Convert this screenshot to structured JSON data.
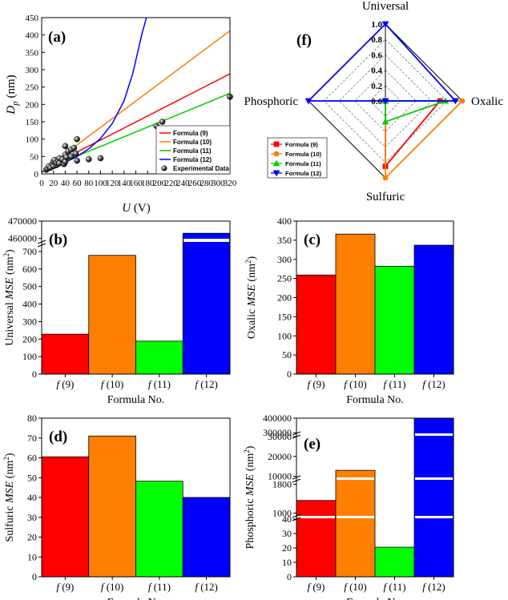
{
  "chart_data": {
    "a": {
      "type": "line",
      "label": "(a)",
      "xlabel_italic": "U",
      "xlabel_unit": " (V)",
      "ylabel_main": "D",
      "ylabel_sub": "p",
      "ylabel_unit": " (nm)",
      "xlim": [
        0,
        320
      ],
      "ylim": [
        0,
        450
      ],
      "x_ticks": [
        "0",
        "20",
        "40",
        "60",
        "80",
        "100",
        "120",
        "140",
        "160",
        "180",
        "200",
        "220",
        "240",
        "260",
        "280",
        "300",
        "320"
      ],
      "y_ticks": [
        "0",
        "50",
        "100",
        "150",
        "200",
        "250",
        "300",
        "350",
        "400",
        "450"
      ],
      "series": [
        {
          "name": "Formula  (9)",
          "color": "#ff0000",
          "points": [
            [
              5,
              15
            ],
            [
              320,
              288
            ]
          ]
        },
        {
          "name": "Formula  (10)",
          "color": "#ff7f00",
          "points": [
            [
              10,
              20
            ],
            [
              320,
              412
            ]
          ]
        },
        {
          "name": "Formula  (11)",
          "color": "#00cc00",
          "points": [
            [
              5,
              13
            ],
            [
              320,
              232
            ]
          ]
        },
        {
          "name": "Formula  (12)",
          "color": "#0000ff",
          "points": [
            [
              0,
              5
            ],
            [
              20,
              20
            ],
            [
              40,
              33
            ],
            [
              60,
              50
            ],
            [
              80,
              72
            ],
            [
              100,
              102
            ],
            [
              120,
              145
            ],
            [
              140,
              210
            ],
            [
              155,
              290
            ],
            [
              170,
              400
            ],
            [
              178,
              450
            ]
          ]
        }
      ],
      "scatter": {
        "name": "Experimental Data",
        "points": [
          [
            8,
            12
          ],
          [
            10,
            15
          ],
          [
            12,
            22
          ],
          [
            15,
            18
          ],
          [
            18,
            28
          ],
          [
            20,
            22
          ],
          [
            20,
            35
          ],
          [
            22,
            40
          ],
          [
            25,
            25
          ],
          [
            25,
            32
          ],
          [
            28,
            38
          ],
          [
            30,
            45
          ],
          [
            30,
            30
          ],
          [
            35,
            42
          ],
          [
            38,
            28
          ],
          [
            40,
            55
          ],
          [
            40,
            80
          ],
          [
            40,
            35
          ],
          [
            42,
            48
          ],
          [
            45,
            65
          ],
          [
            50,
            70
          ],
          [
            50,
            50
          ],
          [
            55,
            75
          ],
          [
            58,
            58
          ],
          [
            60,
            100
          ],
          [
            60,
            38
          ],
          [
            80,
            42
          ],
          [
            100,
            45
          ],
          [
            195,
            138
          ],
          [
            205,
            150
          ],
          [
            320,
            222
          ]
        ]
      }
    },
    "f": {
      "type": "radar",
      "label": "(f)",
      "axes": [
        "Universal",
        "Oxalic",
        "Sulfuric",
        "Phosphoric"
      ],
      "rings": [
        "0.0",
        "0.2",
        "0.4",
        "0.6",
        "0.8",
        "1.0"
      ],
      "series": [
        {
          "name": "Formula  (9)",
          "color": "#ff0000",
          "marker": "square",
          "values": [
            0.0,
            0.71,
            0.85,
            0.0
          ]
        },
        {
          "name": "Formula  (10)",
          "color": "#ff7f00",
          "marker": "circle",
          "values": [
            0.0,
            1.0,
            1.0,
            0.0
          ]
        },
        {
          "name": "Formula  (11)",
          "color": "#00cc00",
          "marker": "triangle-up",
          "values": [
            0.0,
            0.78,
            0.27,
            0.0
          ]
        },
        {
          "name": "Formula  (12)",
          "color": "#0000ff",
          "marker": "triangle-down",
          "values": [
            1.0,
            0.91,
            0.0,
            1.0
          ]
        }
      ]
    },
    "b": {
      "type": "bar",
      "label": "(b)",
      "ylabel": "Universal",
      "ylabel_italic": "MSE",
      "ylabel_unit": " (nm",
      "ylabel_sup": "2",
      "ylabel_close": ")",
      "xlabel": "Formula No.",
      "categories": [
        "f (9)",
        "f (10)",
        "f (11)",
        "f (12)"
      ],
      "values": [
        228,
        678,
        188,
        463000
      ],
      "colors": [
        "#ff0000",
        "#ff7f00",
        "#00ff00",
        "#0000ff"
      ],
      "broken_axis": {
        "lower": [
          0,
          750
        ],
        "upper": [
          458000,
          470000
        ]
      },
      "y_ticks_lower": [
        "0",
        "100",
        "200",
        "300",
        "400",
        "500",
        "600",
        "700"
      ],
      "y_ticks_upper": [
        "460000",
        "470000"
      ]
    },
    "c": {
      "type": "bar",
      "label": "(c)",
      "ylabel": "Oxalic",
      "ylabel_italic": "MSE",
      "ylabel_unit": " (nm",
      "ylabel_sup": "2",
      "ylabel_close": ")",
      "xlabel": "Formula No.",
      "categories": [
        "f (9)",
        "f (10)",
        "f (11)",
        "f (12)"
      ],
      "values": [
        259,
        366,
        282,
        337
      ],
      "colors": [
        "#ff0000",
        "#ff7f00",
        "#00ff00",
        "#0000ff"
      ],
      "ylim": [
        0,
        400
      ],
      "y_ticks": [
        "0",
        "50",
        "100",
        "150",
        "200",
        "250",
        "300",
        "350",
        "400"
      ]
    },
    "d": {
      "type": "bar",
      "label": "(d)",
      "ylabel": "Sulfuric",
      "ylabel_italic": "MSE",
      "ylabel_unit": " (nm",
      "ylabel_sup": "2",
      "ylabel_close": ")",
      "xlabel": "Formula No.",
      "categories": [
        "f (9)",
        "f (10)",
        "f (11)",
        "f (12)"
      ],
      "values": [
        60.5,
        71.0,
        48.2,
        40.0
      ],
      "colors": [
        "#ff0000",
        "#ff7f00",
        "#00ff00",
        "#0000ff"
      ],
      "ylim": [
        0,
        80
      ],
      "y_ticks": [
        "0",
        "10",
        "20",
        "30",
        "40",
        "50",
        "60",
        "70",
        "80"
      ]
    },
    "e": {
      "type": "bar",
      "label": "(e)",
      "ylabel": "Phosphoric",
      "ylabel_italic": "MSE",
      "ylabel_unit": " (nm",
      "ylabel_sup": "2",
      "ylabel_close": ")",
      "xlabel": "Formula No.",
      "categories": [
        "f (9)",
        "f (10)",
        "f (11)",
        "f (12)"
      ],
      "values": [
        1350,
        13000,
        20.5,
        400000
      ],
      "colors": [
        "#ff0000",
        "#ff7f00",
        "#00ff00",
        "#0000ff"
      ],
      "segments": [
        {
          "range": [
            0,
            40
          ],
          "ticks": [
            "0",
            "10",
            "20",
            "30",
            "40"
          ]
        },
        {
          "range": [
            900,
            1900
          ],
          "ticks": [
            "1000",
            "1800"
          ]
        },
        {
          "range": [
            9000,
            30000
          ],
          "ticks": [
            "10000",
            "20000",
            "30000"
          ]
        },
        {
          "range": [
            290000,
            400000
          ],
          "ticks": [
            "300000",
            "400000"
          ]
        }
      ]
    }
  }
}
